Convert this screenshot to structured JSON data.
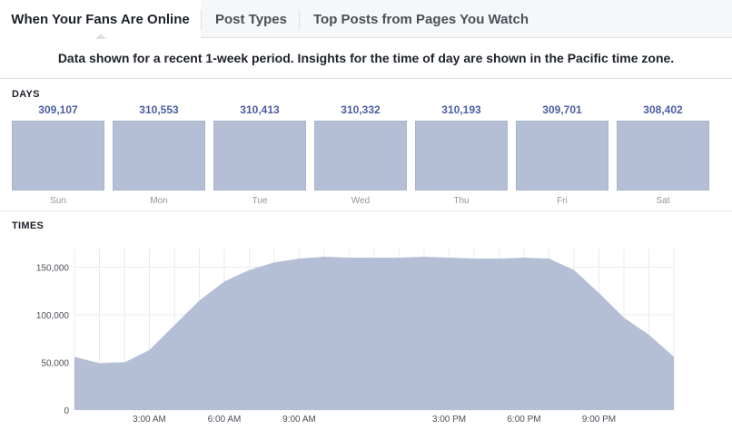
{
  "tabs": [
    {
      "label": "When Your Fans Are Online",
      "active": true
    },
    {
      "label": "Post Types",
      "active": false
    },
    {
      "label": "Top Posts from Pages You Watch",
      "active": false
    }
  ],
  "notice": "Data shown for a recent 1-week period. Insights for the time of day are shown in the Pacific time zone.",
  "days": {
    "title": "DAYS",
    "items": [
      {
        "day": "Sun",
        "value": "309,107"
      },
      {
        "day": "Mon",
        "value": "310,553"
      },
      {
        "day": "Tue",
        "value": "310,413"
      },
      {
        "day": "Wed",
        "value": "310,332"
      },
      {
        "day": "Thu",
        "value": "310,193"
      },
      {
        "day": "Fri",
        "value": "309,701"
      },
      {
        "day": "Sat",
        "value": "308,402"
      }
    ]
  },
  "times": {
    "title": "TIMES"
  },
  "colors": {
    "bar_fill": "#b4bfd6",
    "area_fill": "#b4bfd6",
    "value_text": "#4b5ea0",
    "grid": "#e9ebee"
  },
  "chart_data": {
    "type": "area",
    "title": "",
    "xlabel": "",
    "ylabel": "",
    "x": [
      0,
      1,
      2,
      3,
      4,
      5,
      6,
      7,
      8,
      9,
      10,
      11,
      12,
      13,
      14,
      15,
      16,
      17,
      18,
      19,
      20,
      21,
      22,
      23,
      24
    ],
    "values": [
      56000,
      49000,
      50000,
      63000,
      89000,
      115000,
      135000,
      147000,
      155000,
      159000,
      161000,
      160000,
      160000,
      160000,
      161000,
      160000,
      159000,
      159000,
      160000,
      159000,
      147000,
      123000,
      97000,
      79000,
      56000
    ],
    "ylim": [
      0,
      160000
    ],
    "y_ticks": [
      0,
      50000,
      100000,
      150000
    ],
    "y_tick_labels": [
      "0",
      "50,000",
      "100,000",
      "150,000"
    ],
    "x_ticks": [
      3,
      6,
      9,
      15,
      18,
      21
    ],
    "x_tick_labels": [
      "3:00 AM",
      "6:00 AM",
      "9:00 AM",
      "3:00 PM",
      "6:00 PM",
      "9:00 PM"
    ],
    "grid": true
  }
}
